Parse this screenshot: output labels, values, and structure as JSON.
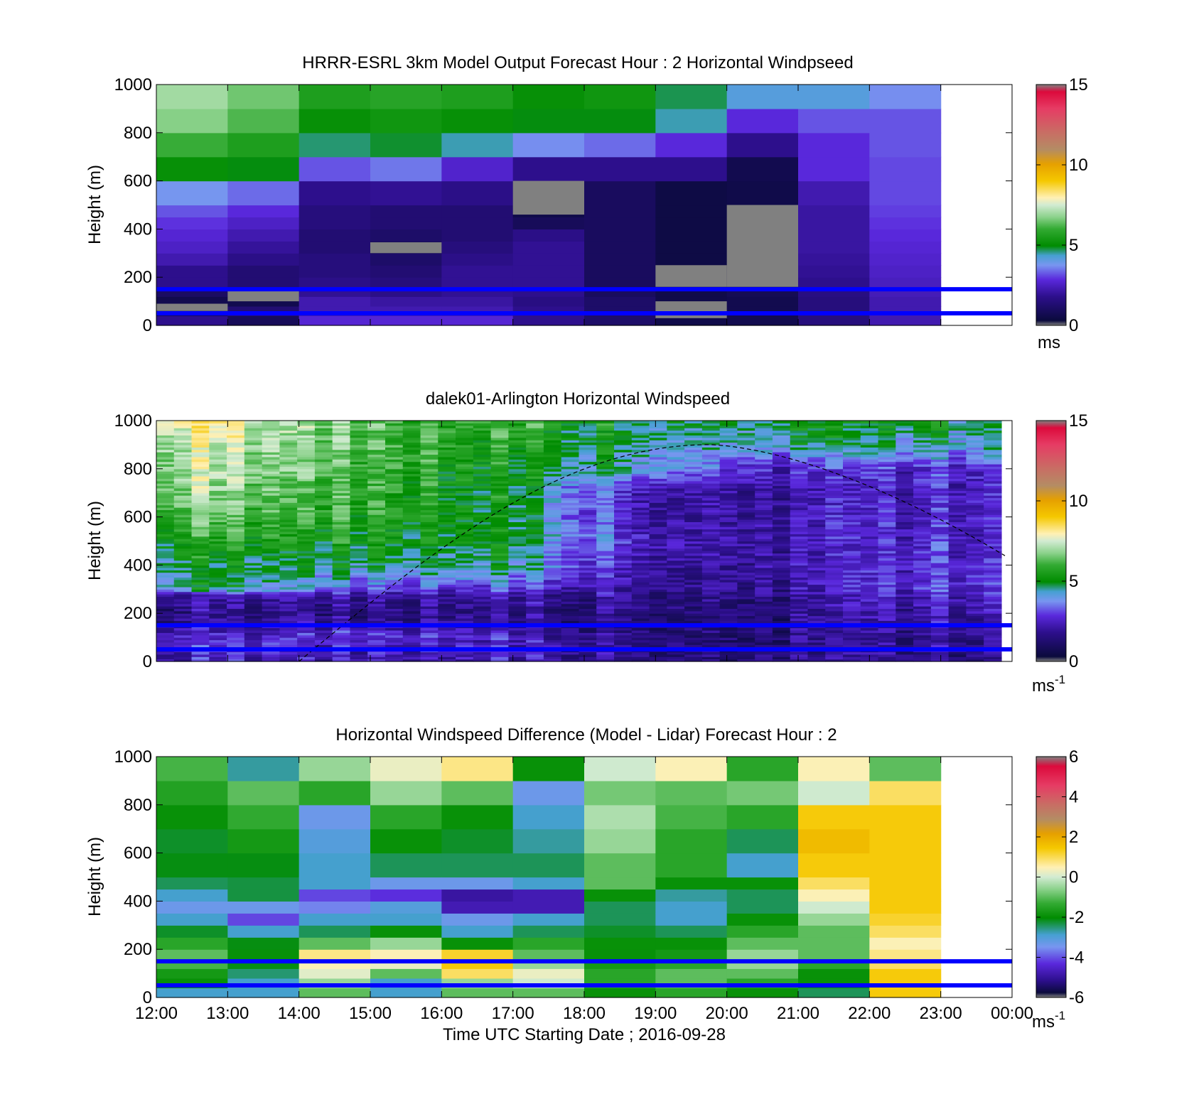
{
  "figure": {
    "xlabel": "Time UTC  Starting Date ; 2016-09-28",
    "x_tick_labels": [
      "12:00",
      "13:00",
      "14:00",
      "15:00",
      "16:00",
      "17:00",
      "18:00",
      "19:00",
      "20:00",
      "21:00",
      "22:00",
      "23:00",
      "00:00"
    ]
  },
  "chart_data": [
    {
      "type": "heatmap",
      "title": "HRRR-ESRL 3km Model Output   Forecast Hour : 2 Horizontal Windpseed",
      "ylabel": "Height (m)",
      "xlabel": "",
      "x_categories": [
        "12:00",
        "13:00",
        "14:00",
        "15:00",
        "16:00",
        "17:00",
        "18:00",
        "19:00",
        "20:00",
        "21:00",
        "22:00",
        "23:00"
      ],
      "ylim": [
        0,
        1000
      ],
      "y_ticks": [
        "0",
        "200",
        "400",
        "600",
        "800",
        "1000"
      ],
      "y_levels": [
        0,
        40,
        80,
        120,
        160,
        200,
        250,
        300,
        350,
        400,
        450,
        500,
        600,
        700,
        800,
        900,
        1000
      ],
      "values_by_hour": [
        [
          1.5,
          0.5,
          0.3,
          0.7,
          1.5,
          1.5,
          2.0,
          2.3,
          2.5,
          2.7,
          3.0,
          3.6,
          5.0,
          6.0,
          6.7,
          7.0
        ],
        [
          0.5,
          1.0,
          0.3,
          0.5,
          1.0,
          1.0,
          1.4,
          1.7,
          2.0,
          2.3,
          2.6,
          3.2,
          4.8,
          5.5,
          6.2,
          6.5
        ],
        [
          2.5,
          2.0,
          2.0,
          1.6,
          1.4,
          1.2,
          1.2,
          1.0,
          1.0,
          1.2,
          1.2,
          1.5,
          3.0,
          4.5,
          5.0,
          5.5
        ],
        [
          2.5,
          2.0,
          1.8,
          1.4,
          1.2,
          1.0,
          0.8,
          0.5,
          0.8,
          1.0,
          1.0,
          1.6,
          3.3,
          4.7,
          5.2,
          5.7
        ],
        [
          2.5,
          2.0,
          1.8,
          1.6,
          1.6,
          1.6,
          1.4,
          1.2,
          1.0,
          1.0,
          1.0,
          1.4,
          2.4,
          4.3,
          5.0,
          5.5
        ],
        [
          1.5,
          1.5,
          1.3,
          1.5,
          1.6,
          1.6,
          1.6,
          1.6,
          1.4,
          0.5,
          0.2,
          0.2,
          1.5,
          3.5,
          4.8,
          5.0
        ],
        [
          0.8,
          0.8,
          0.8,
          0.6,
          0.6,
          0.6,
          0.6,
          0.6,
          0.6,
          0.6,
          0.6,
          0.6,
          1.5,
          3.2,
          4.8,
          5.2
        ],
        [
          0.2,
          0.2,
          0.2,
          0.2,
          0.2,
          0.1,
          0.1,
          0.1,
          0.1,
          0.1,
          0.1,
          0.1,
          1.5,
          2.6,
          4.3,
          4.6
        ],
        [
          0.3,
          0.3,
          0.3,
          0.4,
          0.2,
          0.2,
          0.2,
          0.2,
          0.2,
          0.2,
          0.2,
          0.2,
          0.3,
          1.5,
          2.6,
          4.0
        ],
        [
          1.2,
          1.2,
          1.2,
          1.3,
          1.5,
          1.6,
          1.7,
          1.8,
          1.8,
          1.8,
          1.8,
          2.0,
          2.6,
          2.6,
          3.0,
          4.0
        ],
        [
          2.0,
          2.0,
          2.0,
          2.1,
          2.2,
          2.3,
          2.4,
          2.5,
          2.6,
          2.7,
          2.8,
          2.9,
          2.9,
          3.0,
          3.0,
          3.5
        ]
      ],
      "missing_regions": [
        {
          "hour": "12:00",
          "from_m": 60,
          "to_m": 90
        },
        {
          "hour": "13:00",
          "from_m": 100,
          "to_m": 145
        },
        {
          "hour": "15:00",
          "from_m": 300,
          "to_m": 345
        },
        {
          "hour": "17:00",
          "from_m": 460,
          "to_m": 500
        },
        {
          "hour": "17:00",
          "from_m": 500,
          "to_m": 600
        },
        {
          "hour": "19:00",
          "from_m": 30,
          "to_m": 100
        },
        {
          "hour": "19:00",
          "from_m": 160,
          "to_m": 250
        },
        {
          "hour": "20:00",
          "from_m": 160,
          "to_m": 500
        }
      ],
      "reference_lines_m": [
        150,
        50
      ],
      "colorbar": {
        "min": 0,
        "max": 15,
        "ticks": [
          "0",
          "5",
          "10",
          "15"
        ],
        "unit": "ms"
      }
    },
    {
      "type": "heatmap",
      "title": "dalek01-Arlington  Horizontal Windspeed",
      "ylabel": "Height (m)",
      "xlabel": "",
      "time_range": [
        "12:00",
        "00:00"
      ],
      "time_step_min": 15,
      "ylim": [
        0,
        1000
      ],
      "y_ticks": [
        "0",
        "200",
        "400",
        "600",
        "800",
        "1000"
      ],
      "profile_levels_m": [
        0,
        100,
        200,
        280,
        300,
        400,
        500,
        600,
        700,
        800,
        900,
        1000
      ],
      "representative_speeds_ms": {
        "12:00-14:00": [
          2.2,
          2.6,
          1.4,
          2.0,
          4.5,
          4.8,
          5.5,
          6.2,
          6.8,
          7.2,
          7.5,
          8.0
        ],
        "14:00-16:00": [
          2.0,
          2.6,
          1.3,
          1.8,
          2.8,
          4.6,
          5.2,
          5.6,
          5.8,
          6.0,
          6.1,
          6.2
        ],
        "16:00-18:00": [
          2.2,
          2.3,
          1.4,
          1.8,
          2.7,
          4.5,
          4.8,
          4.9,
          5.0,
          5.2,
          5.5,
          5.8
        ],
        "18:00-20:00": [
          1.5,
          1.2,
          1.4,
          1.6,
          1.8,
          1.8,
          2.4,
          2.0,
          2.0,
          4.0,
          4.4,
          4.9
        ],
        "20:00-22:00": [
          1.2,
          1.2,
          1.3,
          1.5,
          1.7,
          1.9,
          1.9,
          1.9,
          1.8,
          2.2,
          4.3,
          4.8
        ],
        "22:00-00:00": [
          1.5,
          1.7,
          2.0,
          2.4,
          2.8,
          2.6,
          2.5,
          2.5,
          2.4,
          2.6,
          4.3,
          4.8
        ]
      },
      "boundary_layer_curve": {
        "start": "14:00",
        "peak_time": "19:45",
        "peak_m": 900,
        "end_m": 430
      },
      "reference_lines_m": [
        150,
        50
      ],
      "colorbar": {
        "min": 0,
        "max": 15,
        "ticks": [
          "0",
          "5",
          "10",
          "15"
        ],
        "unit": "ms",
        "unit_exponent": "-1"
      }
    },
    {
      "type": "heatmap",
      "title": "Horizontal Windspeed Difference (Model - Lidar) Forecast Hour : 2",
      "ylabel": "Height (m)",
      "xlabel": "Time UTC  Starting Date ; 2016-09-28",
      "x_categories": [
        "12:00",
        "13:00",
        "14:00",
        "15:00",
        "16:00",
        "17:00",
        "18:00",
        "19:00",
        "20:00",
        "21:00",
        "22:00",
        "23:00"
      ],
      "ylim": [
        0,
        1000
      ],
      "y_ticks": [
        "0",
        "200",
        "400",
        "600",
        "800",
        "1000"
      ],
      "y_levels": [
        0,
        40,
        80,
        120,
        160,
        200,
        250,
        300,
        350,
        400,
        450,
        500,
        600,
        700,
        800,
        900,
        1000
      ],
      "values_by_hour": [
        [
          -3.0,
          -2.0,
          -1.8,
          -1.2,
          -1.0,
          -1.5,
          -2.3,
          -3.0,
          -3.5,
          -3.0,
          -2.5,
          -2.2,
          -2.3,
          -2.0,
          -1.6,
          -1.2
        ],
        [
          -3.0,
          -3.0,
          -2.6,
          -2.2,
          -2.0,
          -2.2,
          -3.0,
          -4.3,
          -3.5,
          -2.4,
          -2.4,
          -2.2,
          -1.8,
          -1.4,
          -1.0,
          -2.8
        ],
        [
          -1.0,
          -0.5,
          0.2,
          0.5,
          0.8,
          -1.0,
          -2.5,
          -3.0,
          -3.8,
          -4.3,
          -3.0,
          -3.0,
          -3.2,
          -3.5,
          -1.5,
          -0.5
        ],
        [
          -3.0,
          -3.0,
          -1.0,
          0.3,
          0.5,
          -0.5,
          -2.0,
          -3.0,
          -3.2,
          -4.5,
          -3.5,
          -2.5,
          -2.0,
          -1.5,
          -0.5,
          0.3
        ],
        [
          -1.0,
          -0.5,
          1.0,
          1.5,
          1.3,
          -2.0,
          -3.0,
          -3.5,
          -5.0,
          -5.2,
          -3.5,
          -2.5,
          -2.3,
          -2.0,
          -1.0,
          0.8
        ],
        [
          -1.0,
          0.0,
          0.3,
          -0.5,
          -1.0,
          -1.5,
          -2.5,
          -3.0,
          -5.0,
          -5.0,
          -3.0,
          -2.5,
          -2.8,
          -3.0,
          -3.5,
          -2.0
        ],
        [
          -2.0,
          -1.5,
          -1.5,
          -1.8,
          -2.0,
          -2.0,
          -2.3,
          -2.5,
          -2.5,
          -2.0,
          -1.0,
          -1.0,
          -0.5,
          -0.3,
          -0.8,
          0.0
        ],
        [
          -1.5,
          -1.0,
          -1.0,
          -1.5,
          -1.8,
          -2.0,
          -2.5,
          -3.0,
          -3.0,
          -2.8,
          -2.0,
          -1.5,
          -1.5,
          -1.2,
          -1.0,
          0.5
        ],
        [
          -2.0,
          -1.5,
          -1.0,
          -0.5,
          -0.5,
          -1.0,
          -1.5,
          -2.0,
          -2.5,
          -2.5,
          -2.0,
          -3.0,
          -2.5,
          -1.5,
          -0.8,
          -1.5
        ],
        [
          -2.5,
          -2.0,
          -2.0,
          -1.5,
          -1.0,
          -1.0,
          -1.0,
          -0.5,
          0.0,
          0.5,
          1.0,
          1.5,
          1.8,
          1.5,
          0.0,
          0.5
        ],
        [
          1.5,
          1.5,
          1.5,
          1.0,
          0.8,
          0.5,
          1.0,
          1.3,
          1.5,
          1.5,
          1.5,
          1.5,
          1.5,
          1.5,
          1.0,
          -1.0
        ]
      ],
      "reference_lines_m": [
        150,
        50
      ],
      "colorbar": {
        "min": -6,
        "max": 6,
        "ticks": [
          "-6",
          "-4",
          "-2",
          "0",
          "2",
          "4",
          "6"
        ],
        "unit": "ms",
        "unit_exponent": "-1"
      }
    }
  ],
  "colors": {
    "reference_line": "#0000ff",
    "missing": "#808080",
    "speed_colormap_stops": [
      "#808080",
      "#0a0a3c",
      "#2d0f8c",
      "#5a28dc",
      "#7896f0",
      "#46a0d2",
      "#008c00",
      "#32aa32",
      "#8cd28c",
      "#d2ebd2",
      "#fff0b4",
      "#f5c800",
      "#e6a000",
      "#b48c64",
      "#c86e64",
      "#e63c64",
      "#dc0a3c",
      "#808080"
    ]
  }
}
